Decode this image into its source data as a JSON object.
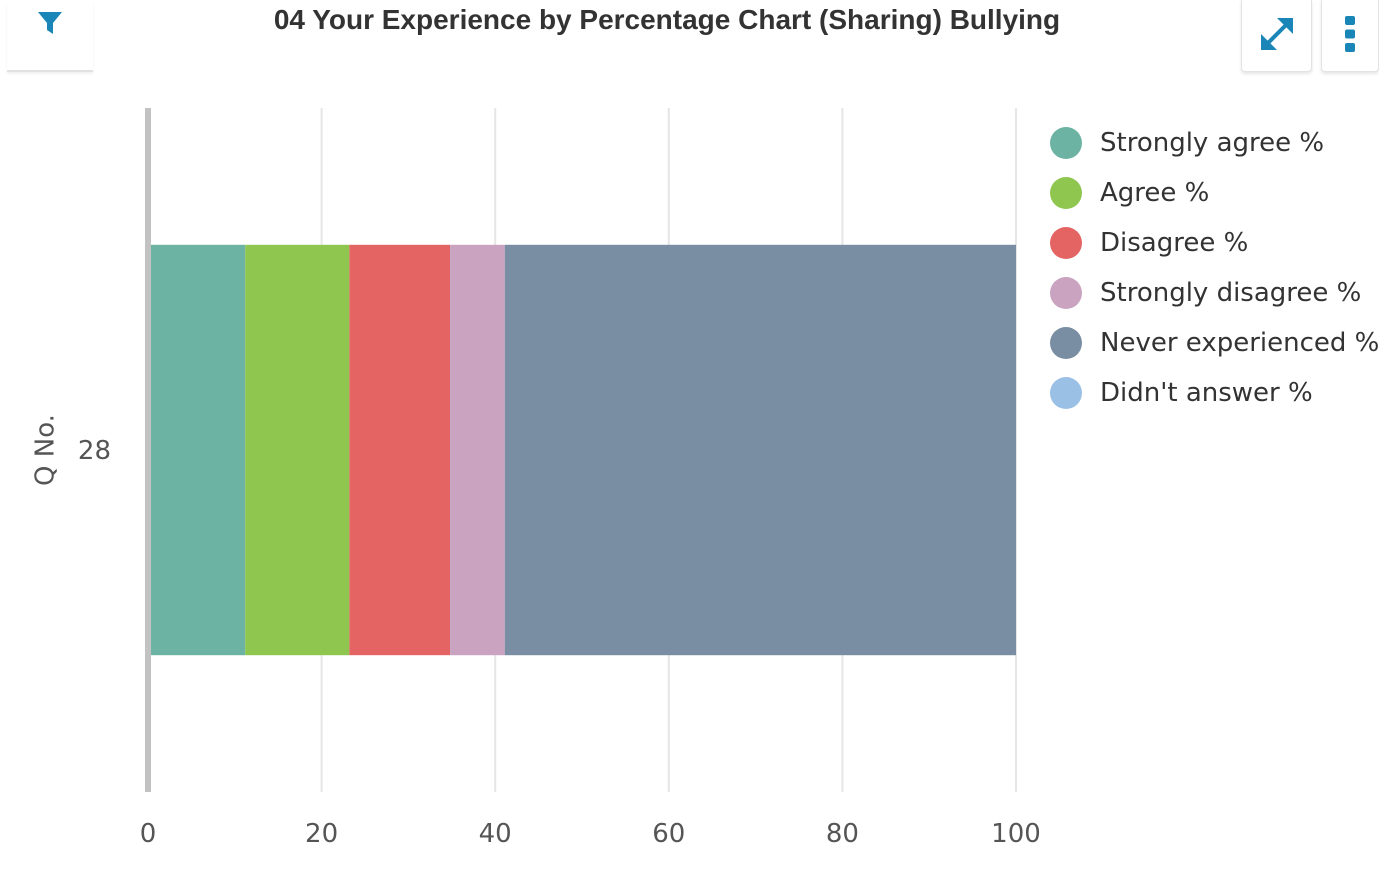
{
  "header": {
    "title": "04 Your Experience by Percentage Chart (Sharing) Bullying",
    "filter_icon": "filter-icon",
    "expand_icon": "expand-arrows-icon",
    "more_icon": "vertical-ellipsis-icon",
    "accent_color": "#1a86b8"
  },
  "chart_data": {
    "type": "bar",
    "orientation": "horizontal",
    "stacked": true,
    "categories": [
      "28"
    ],
    "series": [
      {
        "name": "Strongly agree %",
        "values": [
          11.2
        ],
        "color": "#6db3a4"
      },
      {
        "name": "Agree %",
        "values": [
          12.0
        ],
        "color": "#8fc64f"
      },
      {
        "name": "Disagree %",
        "values": [
          11.6
        ],
        "color": "#e46464"
      },
      {
        "name": "Strongly disagree %",
        "values": [
          6.3
        ],
        "color": "#c9a3bf"
      },
      {
        "name": "Never experienced %",
        "values": [
          58.9
        ],
        "color": "#798ea2"
      },
      {
        "name": "Didn't answer %",
        "values": [
          0
        ],
        "color": "#9bc0e6"
      }
    ],
    "xticks": [
      "0",
      "20",
      "40",
      "60",
      "80",
      "100"
    ],
    "xlim": [
      0,
      100
    ],
    "xlabel": "",
    "ylabel": "Q No.",
    "grid": true,
    "legend_position": "right"
  }
}
